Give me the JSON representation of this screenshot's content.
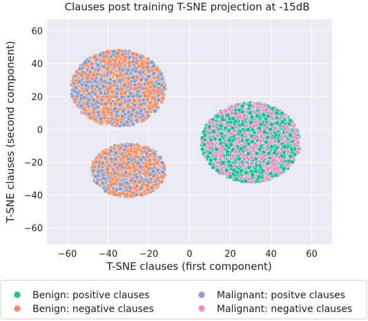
{
  "chart_data": {
    "type": "scatter",
    "title": "Clauses post training T-SNE projection at -15dB",
    "xlabel": "T-SNE clauses (first component)",
    "ylabel": "T-SNE clauses (second component)",
    "xlim": [
      -70,
      70
    ],
    "ylim": [
      -70,
      67
    ],
    "xticks": [
      -60,
      -40,
      -20,
      0,
      20,
      40,
      60
    ],
    "yticks": [
      -60,
      -40,
      -20,
      0,
      20,
      40,
      60
    ],
    "xtick_labels": [
      "−60",
      "−40",
      "−20",
      "0",
      "20",
      "40",
      "60"
    ],
    "ytick_labels": [
      "−60",
      "−40",
      "−20",
      "0",
      "20",
      "40",
      "60"
    ],
    "grid": true,
    "background": "#eaeaf2",
    "legend_position": "bottom",
    "legend_columns": 2,
    "series": [
      {
        "name": "Benign: positive clauses",
        "color": "#1fbf98",
        "regions": [
          {
            "center": [
              30,
              -8
            ],
            "spread": [
              24,
              24
            ],
            "n": 1300
          }
        ]
      },
      {
        "name": "Benign: negative clauses",
        "color": "#fb8c5c",
        "regions": [
          {
            "center": [
              -35,
              25
            ],
            "spread": [
              23,
              23
            ],
            "n": 950
          },
          {
            "center": [
              -30,
              -25
            ],
            "spread": [
              18,
              16
            ],
            "n": 500
          }
        ]
      },
      {
        "name": "Malignant: positve clauses",
        "color": "#8da0cb",
        "regions": [
          {
            "center": [
              -35,
              25
            ],
            "spread": [
              23,
              23
            ],
            "n": 950
          },
          {
            "center": [
              -30,
              -25
            ],
            "spread": [
              18,
              16
            ],
            "n": 500
          }
        ]
      },
      {
        "name": "Malignant: negative clauses",
        "color": "#f28cc4",
        "regions": [
          {
            "center": [
              30,
              -8
            ],
            "spread": [
              24,
              24
            ],
            "n": 1100
          }
        ]
      }
    ]
  }
}
